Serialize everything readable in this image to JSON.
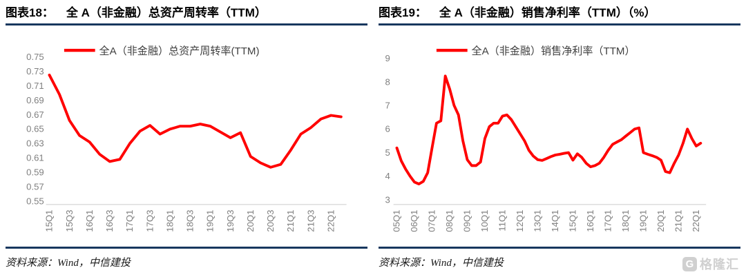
{
  "colors": {
    "line": "#FF0000",
    "rule": "#17375E",
    "axis_text": "#7F7F7F",
    "axis_line": "#D9D9D9",
    "legend_text": "#404040",
    "watermark": "#C8C8C8"
  },
  "panels": [
    {
      "header_prefix": "图表18：",
      "header_title": "全 A（非金融）总资产周转率（TTM）",
      "legend_label": "全A（非金融）总资产周转率(TTM)",
      "source_label": "资料来源：Wind，中信建投"
    },
    {
      "header_prefix": "图表19：",
      "header_title": "全 A（非金融）销售净利率（TTM）（%）",
      "legend_label": "全A（非金融）销售净利率（TTM）",
      "source_label": "资料来源：Wind，中信建投"
    }
  ],
  "watermark": {
    "icon_letter": "G",
    "text": "格隆汇"
  },
  "chart_data": [
    {
      "type": "line",
      "title": "全A（非金融）总资产周转率(TTM)",
      "legend_position": "top",
      "grid": false,
      "ylim": [
        0.55,
        0.75
      ],
      "ytick_labels": [
        "0.75",
        "0.73",
        "0.71",
        "0.69",
        "0.67",
        "0.65",
        "0.63",
        "0.61",
        "0.59",
        "0.57",
        "0.55"
      ],
      "x_tick_every": 2,
      "categories": [
        "15Q1",
        "15Q2",
        "15Q3",
        "15Q4",
        "16Q1",
        "16Q2",
        "16Q3",
        "16Q4",
        "17Q1",
        "17Q2",
        "17Q3",
        "17Q4",
        "18Q1",
        "18Q2",
        "18Q3",
        "18Q4",
        "19Q1",
        "19Q2",
        "19Q3",
        "19Q4",
        "20Q1",
        "20Q2",
        "20Q3",
        "20Q4",
        "21Q1",
        "21Q2",
        "21Q3",
        "21Q4",
        "22Q1",
        "22Q2"
      ],
      "values": [
        0.725,
        0.698,
        0.662,
        0.641,
        0.632,
        0.615,
        0.605,
        0.608,
        0.63,
        0.647,
        0.655,
        0.643,
        0.65,
        0.654,
        0.654,
        0.657,
        0.654,
        0.646,
        0.638,
        0.645,
        0.612,
        0.603,
        0.597,
        0.601,
        0.621,
        0.643,
        0.652,
        0.664,
        0.669,
        0.667
      ]
    },
    {
      "type": "line",
      "title": "全A（非金融）销售净利率（TTM）",
      "legend_position": "top",
      "grid": false,
      "ylim": [
        3,
        9
      ],
      "ytick_labels": [
        "9",
        "8",
        "7",
        "6",
        "5",
        "4",
        "3"
      ],
      "x_tick_every": 4,
      "categories": [
        "05Q1",
        "05Q2",
        "05Q3",
        "05Q4",
        "06Q1",
        "06Q2",
        "06Q3",
        "06Q4",
        "07Q1",
        "07Q2",
        "07Q3",
        "07Q4",
        "08Q1",
        "08Q2",
        "08Q3",
        "08Q4",
        "09Q1",
        "09Q2",
        "09Q3",
        "09Q4",
        "10Q1",
        "10Q2",
        "10Q3",
        "10Q4",
        "11Q1",
        "11Q2",
        "11Q3",
        "11Q4",
        "12Q1",
        "12Q2",
        "12Q3",
        "12Q4",
        "13Q1",
        "13Q2",
        "13Q3",
        "13Q4",
        "14Q1",
        "14Q2",
        "14Q3",
        "14Q4",
        "15Q1",
        "15Q2",
        "15Q3",
        "15Q4",
        "16Q1",
        "16Q2",
        "16Q3",
        "16Q4",
        "17Q1",
        "17Q2",
        "17Q3",
        "17Q4",
        "18Q1",
        "18Q2",
        "18Q3",
        "18Q4",
        "19Q1",
        "19Q2",
        "19Q3",
        "19Q4",
        "20Q1",
        "20Q2",
        "20Q3",
        "20Q4",
        "21Q1",
        "21Q2",
        "21Q3",
        "21Q4",
        "22Q1",
        "22Q2"
      ],
      "values": [
        5.2,
        4.65,
        4.3,
        4.0,
        3.75,
        3.67,
        3.78,
        4.15,
        5.2,
        6.25,
        6.35,
        8.25,
        7.7,
        7.0,
        6.6,
        5.5,
        4.7,
        4.45,
        4.45,
        4.6,
        5.6,
        6.1,
        6.25,
        6.25,
        6.55,
        6.6,
        6.4,
        6.1,
        5.8,
        5.5,
        5.1,
        4.85,
        4.7,
        4.67,
        4.75,
        4.83,
        4.9,
        4.93,
        4.97,
        5.0,
        4.68,
        4.95,
        4.8,
        4.55,
        4.4,
        4.45,
        4.55,
        4.8,
        5.1,
        5.35,
        5.45,
        5.55,
        5.7,
        5.85,
        6.0,
        6.05,
        5.0,
        4.93,
        4.87,
        4.8,
        4.68,
        4.2,
        4.15,
        4.55,
        4.9,
        5.4,
        6.0,
        5.6,
        5.28,
        5.4
      ]
    }
  ]
}
